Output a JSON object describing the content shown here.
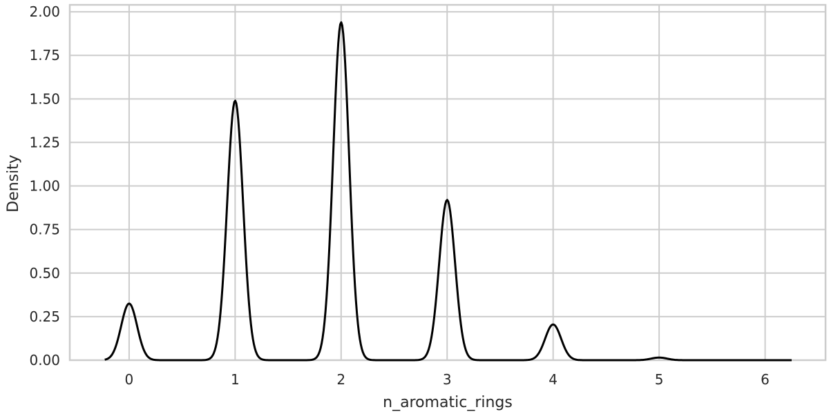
{
  "chart_data": {
    "type": "line",
    "title": "",
    "xlabel": "n_aromatic_rings",
    "ylabel": "Density",
    "xlim": [
      -0.56,
      6.57
    ],
    "ylim": [
      0,
      2.04
    ],
    "grid": true,
    "legend": "none",
    "x_ticks": [
      0,
      1,
      2,
      3,
      4,
      5,
      6
    ],
    "x_tick_labels": [
      "0",
      "1",
      "2",
      "3",
      "4",
      "5",
      "6"
    ],
    "y_ticks": [
      0,
      0.25,
      0.5,
      0.75,
      1.0,
      1.25,
      1.5,
      1.75,
      2.0
    ],
    "y_tick_labels": [
      "0.00",
      "0.25",
      "0.50",
      "0.75",
      "1.00",
      "1.25",
      "1.50",
      "1.75",
      "2.00"
    ],
    "line_color": "#000000",
    "series": [
      {
        "peaks": [
          {
            "center": 0,
            "height": 0.325
          },
          {
            "center": 1,
            "height": 1.49
          },
          {
            "center": 2,
            "height": 1.94
          },
          {
            "center": 3,
            "height": 0.92
          },
          {
            "center": 4,
            "height": 0.205
          },
          {
            "center": 5,
            "height": 0.015
          }
        ],
        "x_range": [
          -0.23,
          6.25
        ]
      }
    ]
  }
}
